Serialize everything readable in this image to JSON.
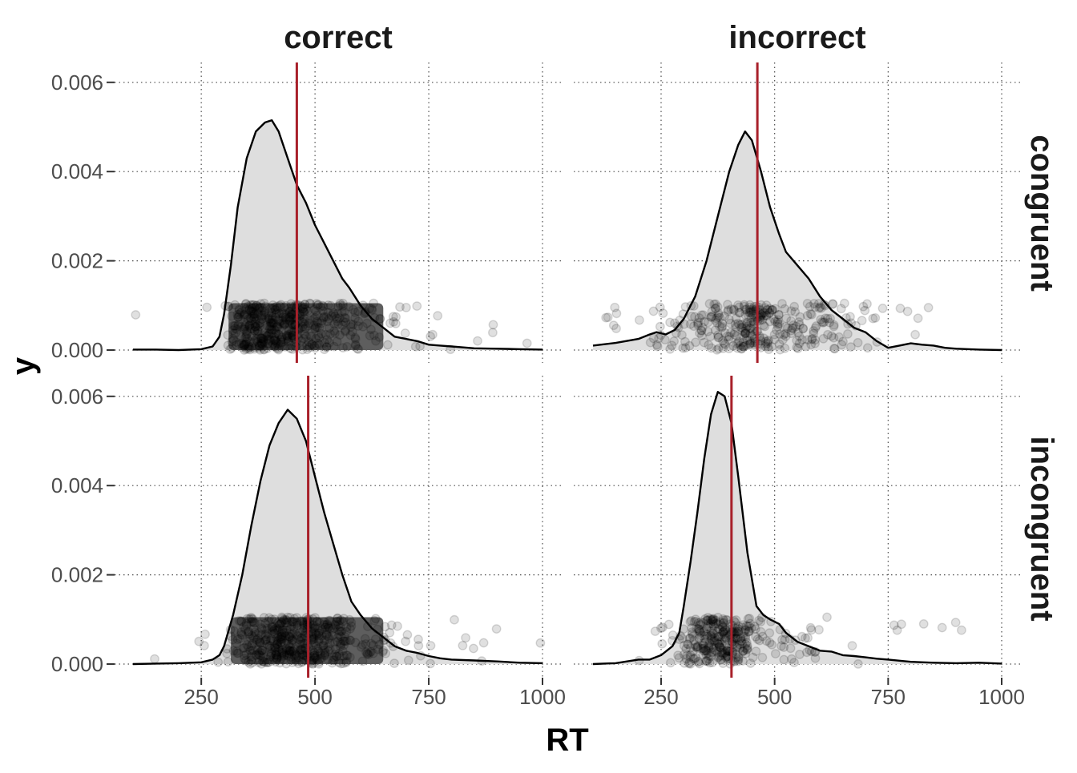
{
  "chart_data": {
    "type": "density",
    "xlabel": "RT",
    "ylabel": "y",
    "col_facet_labels": [
      "correct",
      "incorrect"
    ],
    "row_facet_labels": [
      "congruent",
      "incongruent"
    ],
    "xlim": [
      100,
      1000
    ],
    "ylim": [
      0,
      0.0064
    ],
    "x_ticks": [
      250,
      500,
      750,
      1000
    ],
    "x_tick_labels": [
      "250",
      "500",
      "750",
      "1000"
    ],
    "y_ticks": [
      0,
      0.002,
      0.004,
      0.006
    ],
    "y_tick_labels": [
      "0.000",
      "0.002",
      "0.004",
      "0.006"
    ],
    "grid": "dotted",
    "mean_line_color": "#a8202a",
    "fill_color": "#dedede",
    "point_color": "#000000",
    "panels": [
      {
        "column": "correct",
        "row": "congruent",
        "mean_rt": 460,
        "points_dense": true,
        "dense_range": [
          310,
          650
        ],
        "point_alpha": 0.12,
        "density": [
          [
            100,
            1e-05
          ],
          [
            150,
            1e-05
          ],
          [
            200,
            0
          ],
          [
            250,
            2e-05
          ],
          [
            275,
            8e-05
          ],
          [
            290,
            0.0003
          ],
          [
            300,
            0.0008
          ],
          [
            315,
            0.0019
          ],
          [
            330,
            0.0032
          ],
          [
            350,
            0.0043
          ],
          [
            370,
            0.0049
          ],
          [
            390,
            0.0051
          ],
          [
            405,
            0.00515
          ],
          [
            420,
            0.0049
          ],
          [
            440,
            0.0043
          ],
          [
            460,
            0.0037
          ],
          [
            480,
            0.0033
          ],
          [
            500,
            0.0028
          ],
          [
            520,
            0.0024
          ],
          [
            540,
            0.002
          ],
          [
            560,
            0.0016
          ],
          [
            575,
            0.0014
          ],
          [
            600,
            0.001
          ],
          [
            625,
            0.0007
          ],
          [
            650,
            0.0005
          ],
          [
            675,
            0.0003
          ],
          [
            700,
            0.00025
          ],
          [
            725,
            0.0002
          ],
          [
            750,
            0.00012
          ],
          [
            775,
            0.0001
          ],
          [
            800,
            8e-05
          ],
          [
            850,
            4e-05
          ],
          [
            900,
            3e-05
          ],
          [
            950,
            2e-05
          ],
          [
            1000,
            1e-05
          ]
        ]
      },
      {
        "column": "incorrect",
        "row": "congruent",
        "mean_rt": 462,
        "points_dense": false,
        "point_alpha": 0.12,
        "density": [
          [
            100,
            0.0001
          ],
          [
            150,
            0.00016
          ],
          [
            200,
            0.00025
          ],
          [
            225,
            0.00035
          ],
          [
            240,
            0.0004
          ],
          [
            260,
            0.00035
          ],
          [
            280,
            0.00045
          ],
          [
            300,
            0.0007
          ],
          [
            325,
            0.0012
          ],
          [
            350,
            0.002
          ],
          [
            375,
            0.003
          ],
          [
            400,
            0.004
          ],
          [
            420,
            0.0046
          ],
          [
            435,
            0.0049
          ],
          [
            450,
            0.0047
          ],
          [
            470,
            0.004
          ],
          [
            490,
            0.0032
          ],
          [
            510,
            0.0026
          ],
          [
            525,
            0.0022
          ],
          [
            550,
            0.0019
          ],
          [
            575,
            0.0016
          ],
          [
            600,
            0.0012
          ],
          [
            625,
            0.0009
          ],
          [
            650,
            0.0007
          ],
          [
            675,
            0.0005
          ],
          [
            700,
            0.0004
          ],
          [
            725,
            0.0002
          ],
          [
            750,
            5e-05
          ],
          [
            775,
            0.0001
          ],
          [
            800,
            0.00015
          ],
          [
            825,
            0.00012
          ],
          [
            850,
            0.0001
          ],
          [
            875,
            5e-05
          ],
          [
            900,
            3e-05
          ],
          [
            950,
            1e-05
          ],
          [
            1000,
            0
          ]
        ]
      },
      {
        "column": "correct",
        "row": "incongruent",
        "mean_rt": 485,
        "points_dense": true,
        "dense_range": [
          315,
          650
        ],
        "point_alpha": 0.12,
        "density": [
          [
            100,
            0
          ],
          [
            150,
            1e-05
          ],
          [
            200,
            2e-05
          ],
          [
            250,
            4e-05
          ],
          [
            275,
            0.0001
          ],
          [
            290,
            0.0002
          ],
          [
            300,
            0.0004
          ],
          [
            320,
            0.0011
          ],
          [
            340,
            0.002
          ],
          [
            360,
            0.0031
          ],
          [
            380,
            0.0041
          ],
          [
            400,
            0.0049
          ],
          [
            420,
            0.0054
          ],
          [
            440,
            0.0057
          ],
          [
            460,
            0.0055
          ],
          [
            480,
            0.005
          ],
          [
            500,
            0.0042
          ],
          [
            520,
            0.0034
          ],
          [
            540,
            0.0027
          ],
          [
            560,
            0.002
          ],
          [
            580,
            0.0014
          ],
          [
            600,
            0.0011
          ],
          [
            625,
            0.0008
          ],
          [
            650,
            0.0006
          ],
          [
            675,
            0.0004
          ],
          [
            700,
            0.0003
          ],
          [
            725,
            0.00025
          ],
          [
            750,
            0.00018
          ],
          [
            775,
            0.00013
          ],
          [
            800,
            0.0001
          ],
          [
            850,
            8e-05
          ],
          [
            900,
            6e-05
          ],
          [
            950,
            3e-05
          ],
          [
            1000,
            2e-05
          ]
        ]
      },
      {
        "column": "incorrect",
        "row": "incongruent",
        "mean_rt": 405,
        "points_dense": false,
        "point_alpha": 0.12,
        "density": [
          [
            100,
            0
          ],
          [
            150,
            2e-05
          ],
          [
            200,
            0.0001
          ],
          [
            225,
            0.0001
          ],
          [
            250,
            0.0002
          ],
          [
            275,
            0.0004
          ],
          [
            290,
            0.0007
          ],
          [
            300,
            0.0013
          ],
          [
            315,
            0.0023
          ],
          [
            330,
            0.0034
          ],
          [
            345,
            0.0046
          ],
          [
            360,
            0.0056
          ],
          [
            375,
            0.0061
          ],
          [
            390,
            0.006
          ],
          [
            405,
            0.0054
          ],
          [
            420,
            0.0042
          ],
          [
            440,
            0.0025
          ],
          [
            460,
            0.0013
          ],
          [
            475,
            0.0011
          ],
          [
            490,
            0.001
          ],
          [
            510,
            0.0009
          ],
          [
            525,
            0.0007
          ],
          [
            550,
            0.0005
          ],
          [
            575,
            0.0004
          ],
          [
            600,
            0.0003
          ],
          [
            625,
            0.00028
          ],
          [
            650,
            0.0002
          ],
          [
            675,
            0.00018
          ],
          [
            700,
            0.00015
          ],
          [
            725,
            0.00012
          ],
          [
            750,
            0.0001
          ],
          [
            800,
            5e-05
          ],
          [
            850,
            3e-05
          ],
          [
            900,
            2e-05
          ],
          [
            950,
            3e-05
          ],
          [
            1000,
            1e-05
          ]
        ]
      }
    ]
  }
}
